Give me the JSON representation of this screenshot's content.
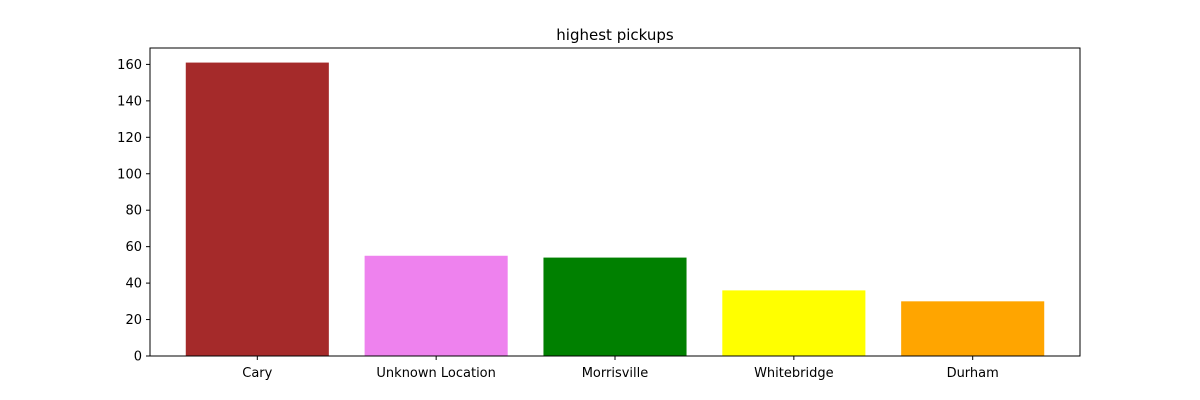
{
  "chart_data": {
    "type": "bar",
    "title": "highest pickups",
    "xlabel": "",
    "ylabel": "",
    "categories": [
      "Cary",
      "Unknown Location",
      "Morrisville",
      "Whitebridge",
      "Durham"
    ],
    "values": [
      161,
      55,
      54,
      36,
      30
    ],
    "colors": [
      "#a52a2a",
      "#ee82ee",
      "#008000",
      "#ffff00",
      "#ffa500"
    ],
    "yticks": [
      "0",
      "20",
      "40",
      "60",
      "80",
      "100",
      "120",
      "140",
      "160"
    ],
    "ylim": [
      0,
      169
    ],
    "grid": false,
    "legend": "none"
  }
}
